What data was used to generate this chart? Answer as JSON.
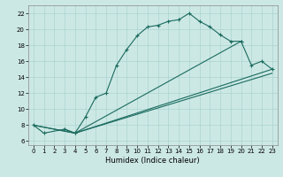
{
  "xlabel": "Humidex (Indice chaleur)",
  "bg_color": "#cce8e5",
  "line_color": "#1a6b5e",
  "grid_color": "#aad4d0",
  "xlim": [
    -0.5,
    23.5
  ],
  "ylim": [
    5.5,
    23.0
  ],
  "xticks": [
    0,
    1,
    2,
    3,
    4,
    5,
    6,
    7,
    8,
    9,
    10,
    11,
    12,
    13,
    14,
    15,
    16,
    17,
    18,
    19,
    20,
    21,
    22,
    23
  ],
  "yticks": [
    6,
    8,
    10,
    12,
    14,
    16,
    18,
    20,
    22
  ],
  "line1_x": [
    0,
    1,
    3,
    4,
    5,
    6,
    7,
    8,
    9,
    10,
    11,
    12,
    13,
    14,
    15,
    16,
    17,
    18,
    19,
    20
  ],
  "line1_y": [
    8.0,
    7.0,
    7.5,
    7.0,
    9.0,
    11.5,
    12.0,
    15.5,
    17.5,
    19.2,
    20.3,
    20.5,
    21.0,
    21.2,
    22.0,
    21.0,
    20.3,
    19.3,
    18.5,
    18.5
  ],
  "line2_x": [
    0,
    4,
    23
  ],
  "line2_y": [
    8.0,
    7.0,
    15.0
  ],
  "line3_x": [
    0,
    4,
    23
  ],
  "line3_y": [
    8.0,
    7.0,
    14.5
  ],
  "line4_x": [
    3,
    4,
    20,
    21,
    22,
    23
  ],
  "line4_y": [
    7.5,
    7.0,
    18.5,
    15.5,
    16.0,
    15.0
  ],
  "xlabel_fontsize": 6,
  "tick_labelsize": 5
}
